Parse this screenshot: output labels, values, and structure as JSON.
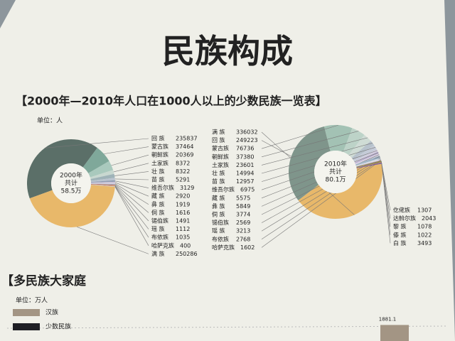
{
  "title": "民族构成",
  "chart_data": [
    {
      "type": "pie",
      "title": "【2000年—2010年人口在1000人以上的少数民族一览表】",
      "unit": "单位：人",
      "center_label": [
        "2000年",
        "共计",
        "58.5万"
      ],
      "categories": [
        "回 族",
        "蒙古族",
        "朝鲜族",
        "土家族",
        "壮 族",
        "苗 族",
        "维吾尔族",
        "藏 族",
        "彝 族",
        "侗 族",
        "锡伯族",
        "瑶 族",
        "布依族",
        "哈萨克族",
        "满 族"
      ],
      "values": [
        235837,
        37464,
        20369,
        8372,
        8322,
        5291,
        3129,
        2920,
        1919,
        1616,
        1491,
        1112,
        1035,
        400,
        250286
      ],
      "colors": [
        "#5b6f68",
        "#7fa89a",
        "#a9c9bd",
        "#c8d8d0",
        "#9fb3b8",
        "#b9c3cf",
        "#8f9bb3",
        "#c9c2d6",
        "#d6cfe0",
        "#a6b7c7",
        "#c24a3a",
        "#d8c58a",
        "#b0a9c0",
        "#e0dbe6",
        "#e8b86a"
      ]
    },
    {
      "type": "pie",
      "unit": "单位：人",
      "center_label": [
        "2010年",
        "共计",
        "80.1万"
      ],
      "categories": [
        "满 族",
        "回 族",
        "蒙古族",
        "朝鲜族",
        "土家族",
        "壮 族",
        "苗 族",
        "维吾尔族",
        "藏 族",
        "彝 族",
        "侗 族",
        "锡伯族",
        "瑶 族",
        "布依族",
        "哈萨克族",
        "仡佬族",
        "达斡尔族",
        "黎 族",
        "傣 族",
        "白 族"
      ],
      "values": [
        336032,
        249223,
        76736,
        37380,
        23601,
        14994,
        12957,
        6975,
        5575,
        5849,
        3774,
        2569,
        3213,
        2768,
        1602,
        1307,
        2043,
        1078,
        1022,
        3493
      ],
      "colors": [
        "#e8b86a",
        "#7f958b",
        "#a3c2b4",
        "#bdd3c8",
        "#cfdcd5",
        "#b7c2cc",
        "#c5cbd8",
        "#d3cde0",
        "#b9aed0",
        "#ddd6e6",
        "#a4b6c8",
        "#8fa7c0",
        "#c9d6e0",
        "#e3e0ea",
        "#b5b5c8",
        "#d35b3e",
        "#4e9b5b",
        "#c04838",
        "#e0c040",
        "#7a5f9a"
      ]
    },
    {
      "type": "bar",
      "title": "【多民族大家庭",
      "unit": "单位：万人",
      "series": [
        {
          "name": "汉族",
          "color": "#a39584",
          "values": [
            1881.1
          ]
        },
        {
          "name": "少数民族",
          "color": "#1e1e24",
          "values": [
            null
          ]
        }
      ]
    }
  ]
}
